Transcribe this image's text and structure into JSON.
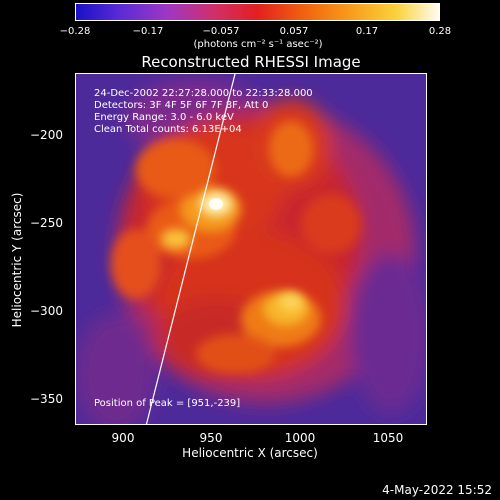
{
  "colorbar": {
    "ticks": [
      "−0.28",
      "−0.17",
      "−0.057",
      "0.057",
      "0.17",
      "0.28"
    ],
    "units": "(photons cm⁻² s⁻¹ asec⁻²)"
  },
  "title": "Reconstructed RHESSI Image",
  "info": {
    "time": "24-Dec-2002 22:27:28.000 to 22:33:28.000",
    "detectors": "Detectors: 3F 4F 5F 6F 7F 8F, Att 0",
    "energy": "Energy Range: 3.0 - 6.0 keV",
    "clean": "Clean     Total counts: 6.13E+04"
  },
  "peak": "Position of Peak = [951,-239]",
  "axes": {
    "xlabel": "Heliocentric X (arcsec)",
    "ylabel": "Heliocentric Y (arcsec)",
    "xticks": [
      "900",
      "950",
      "1000",
      "1050"
    ],
    "yticks": [
      "−200",
      "−250",
      "−300",
      "−350"
    ]
  },
  "timestamp": "4-May-2022 15:52"
}
